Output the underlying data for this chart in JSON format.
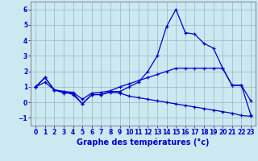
{
  "title": "Graphe des températures (°c)",
  "background_color": "#cce8f0",
  "grid_color": "#a0bece",
  "line_color": "#0000cc",
  "xlim": [
    -0.5,
    23.5
  ],
  "ylim": [
    -1.5,
    6.5
  ],
  "yticks": [
    -1,
    0,
    1,
    2,
    3,
    4,
    5,
    6
  ],
  "xticks": [
    0,
    1,
    2,
    3,
    4,
    5,
    6,
    7,
    8,
    9,
    10,
    11,
    12,
    13,
    14,
    15,
    16,
    17,
    18,
    19,
    20,
    21,
    22,
    23
  ],
  "series": [
    {
      "x": [
        0,
        1,
        2,
        3,
        4,
        5,
        6,
        7,
        8,
        9,
        10,
        11,
        12,
        13,
        14,
        15,
        16,
        17,
        18,
        19,
        20,
        21,
        22,
        23
      ],
      "y": [
        1.0,
        1.6,
        0.8,
        0.6,
        0.6,
        -0.1,
        0.5,
        0.5,
        0.7,
        0.7,
        1.0,
        1.3,
        2.0,
        3.0,
        4.9,
        6.0,
        4.5,
        4.4,
        3.8,
        3.5,
        2.2,
        1.1,
        1.1,
        0.1
      ]
    },
    {
      "x": [
        0,
        1,
        2,
        3,
        4,
        5,
        6,
        7,
        8,
        9,
        10,
        11,
        12,
        13,
        14,
        15,
        16,
        17,
        18,
        19,
        20,
        21,
        22,
        23
      ],
      "y": [
        1.0,
        1.6,
        0.8,
        0.7,
        0.65,
        0.2,
        0.6,
        0.65,
        0.75,
        1.0,
        1.2,
        1.4,
        1.6,
        1.8,
        2.0,
        2.2,
        2.2,
        2.2,
        2.2,
        2.2,
        2.2,
        1.1,
        1.1,
        -0.8
      ]
    },
    {
      "x": [
        0,
        1,
        2,
        3,
        4,
        5,
        6,
        7,
        8,
        9,
        10,
        11,
        12,
        13,
        14,
        15,
        16,
        17,
        18,
        19,
        20,
        21,
        22,
        23
      ],
      "y": [
        1.0,
        1.3,
        0.8,
        0.7,
        0.5,
        -0.1,
        0.5,
        0.5,
        0.65,
        0.6,
        0.4,
        0.3,
        0.2,
        0.1,
        0.0,
        -0.1,
        -0.2,
        -0.3,
        -0.4,
        -0.5,
        -0.6,
        -0.7,
        -0.85,
        -0.9
      ]
    }
  ],
  "tick_color": "#0000cc",
  "tick_fontsize": 5.5,
  "xlabel_fontsize": 7,
  "xlabel_bold": true
}
